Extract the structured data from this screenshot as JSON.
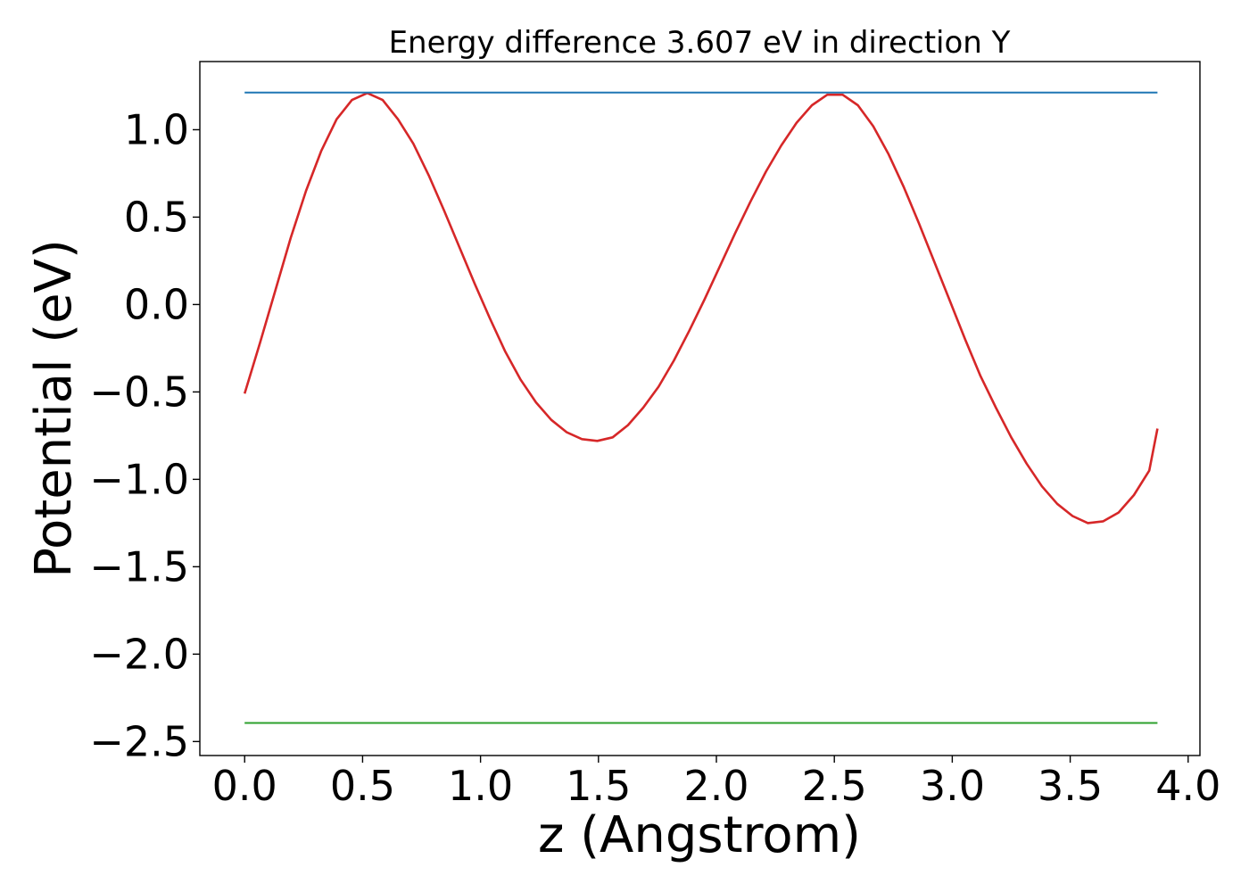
{
  "chart_data": {
    "type": "line",
    "title": "Energy difference 3.607 eV in direction Y",
    "xlabel": "z (Angstrom)",
    "ylabel": "Potential (eV)",
    "xlim": [
      -0.19,
      4.05
    ],
    "ylim": [
      -2.58,
      1.39
    ],
    "xticks": [
      0.0,
      0.5,
      1.0,
      1.5,
      2.0,
      2.5,
      3.0,
      3.5,
      4.0
    ],
    "xtick_labels": [
      "0.0",
      "0.5",
      "1.0",
      "1.5",
      "2.0",
      "2.5",
      "3.0",
      "3.5",
      "4.0"
    ],
    "yticks": [
      1.0,
      0.5,
      0.0,
      -0.5,
      -1.0,
      -1.5,
      -2.0,
      -2.5
    ],
    "ytick_labels": [
      "1.0",
      "0.5",
      "0.0",
      "−0.5",
      "−1.0",
      "−1.5",
      "−2.0",
      "−2.5"
    ],
    "grid": false,
    "series": [
      {
        "color": "#d62728",
        "x": [
          0.0,
          0.065,
          0.13,
          0.195,
          0.26,
          0.325,
          0.39,
          0.455,
          0.52,
          0.585,
          0.65,
          0.715,
          0.78,
          0.845,
          0.91,
          0.975,
          1.04,
          1.105,
          1.17,
          1.235,
          1.3,
          1.365,
          1.43,
          1.495,
          1.56,
          1.625,
          1.69,
          1.755,
          1.82,
          1.885,
          1.95,
          2.015,
          2.08,
          2.145,
          2.21,
          2.275,
          2.34,
          2.405,
          2.47,
          2.535,
          2.6,
          2.665,
          2.73,
          2.795,
          2.86,
          2.925,
          2.99,
          3.055,
          3.12,
          3.185,
          3.25,
          3.315,
          3.38,
          3.445,
          3.51,
          3.575,
          3.64,
          3.705,
          3.77,
          3.835,
          3.87
        ],
        "y": [
          -0.51,
          -0.22,
          0.08,
          0.38,
          0.65,
          0.88,
          1.06,
          1.17,
          1.21,
          1.17,
          1.06,
          0.92,
          0.74,
          0.54,
          0.33,
          0.12,
          -0.08,
          -0.27,
          -0.43,
          -0.56,
          -0.66,
          -0.73,
          -0.77,
          -0.78,
          -0.76,
          -0.69,
          -0.59,
          -0.47,
          -0.32,
          -0.15,
          0.03,
          0.22,
          0.41,
          0.59,
          0.76,
          0.91,
          1.04,
          1.14,
          1.2,
          1.2,
          1.14,
          1.02,
          0.86,
          0.67,
          0.46,
          0.24,
          0.02,
          -0.2,
          -0.41,
          -0.59,
          -0.76,
          -0.91,
          -1.04,
          -1.14,
          -1.21,
          -1.25,
          -1.24,
          -1.19,
          -1.09,
          -0.95,
          -0.71
        ]
      },
      {
        "color": "#1f77b4",
        "x": [
          0.0,
          3.87
        ],
        "y": [
          1.213,
          1.213
        ]
      },
      {
        "color": "#2ca02c",
        "x": [
          0.0,
          3.87
        ],
        "y": [
          -2.394,
          -2.394
        ]
      }
    ]
  }
}
